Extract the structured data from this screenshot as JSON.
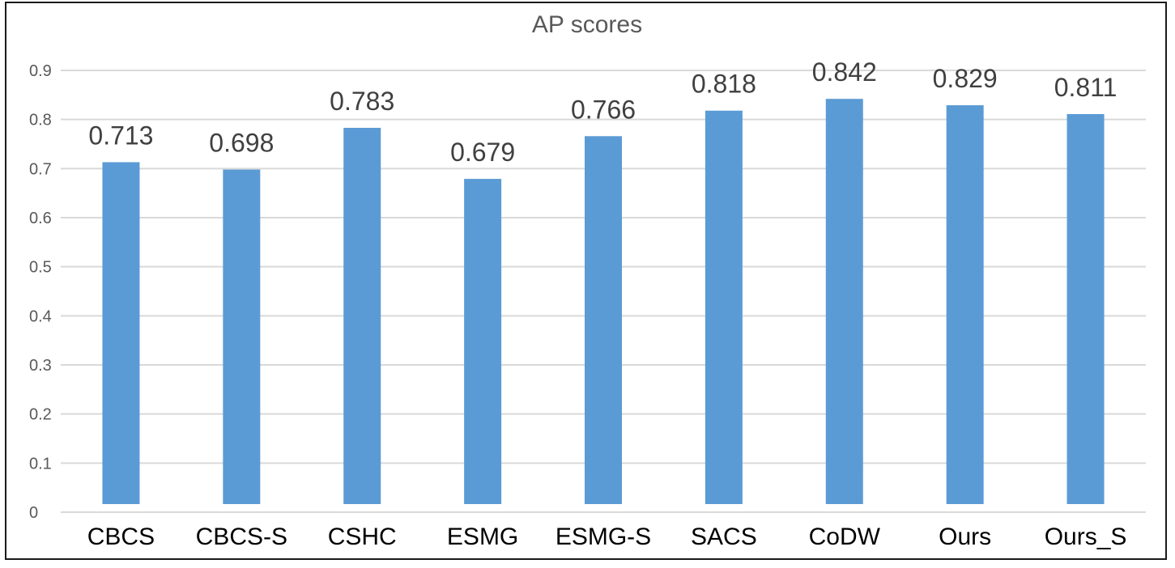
{
  "chart_data": {
    "type": "bar",
    "title": "AP scores",
    "xlabel": "",
    "ylabel": "",
    "categories": [
      "CBCS",
      "CBCS-S",
      "CSHC",
      "ESMG",
      "ESMG-S",
      "SACS",
      "CoDW",
      "Ours",
      "Ours_S"
    ],
    "values": [
      0.713,
      0.698,
      0.783,
      0.679,
      0.766,
      0.818,
      0.842,
      0.829,
      0.811
    ],
    "data_labels": [
      "0.713",
      "0.698",
      "0.783",
      "0.679",
      "0.766",
      "0.818",
      "0.842",
      "0.829",
      "0.811"
    ],
    "ylim": [
      0,
      0.9
    ],
    "yticks": [
      "0",
      "0.1",
      "0.2",
      "0.3",
      "0.4",
      "0.5",
      "0.6",
      "0.7",
      "0.8",
      "0.9"
    ],
    "grid": true,
    "legend": "none",
    "colors": {
      "bar": "#5b9bd5",
      "grid": "#d9d9d9",
      "title": "#595959",
      "tick_label": "#595959",
      "category_label": "#000000",
      "data_label": "#404040",
      "frame": "#1a1a1a"
    }
  }
}
